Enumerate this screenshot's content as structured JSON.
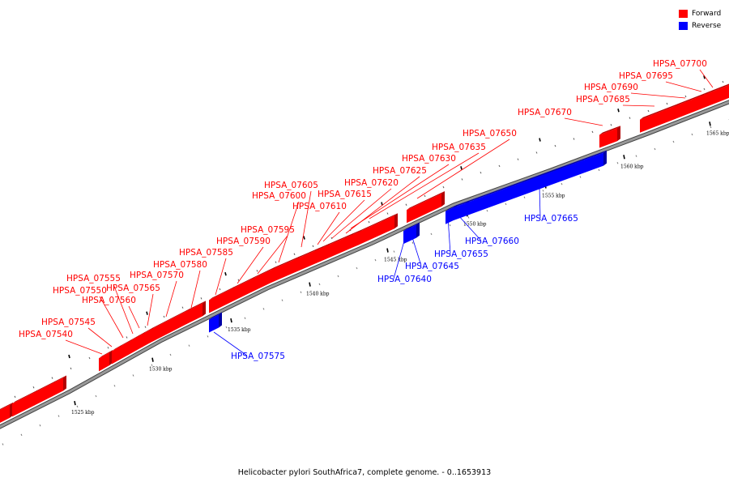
{
  "caption": "Helicobacter pylori SouthAfrica7, complete genome. - 0..1653913",
  "legend": [
    {
      "label": "Forward",
      "color": "#ff0000"
    },
    {
      "label": "Reverse",
      "color": "#0000ff"
    }
  ],
  "colors": {
    "forward": "#ff0000",
    "forward_dark": "#b30000",
    "reverse": "#0000ff",
    "reverse_dark": "#0000a6",
    "backbone": "#999999"
  },
  "ticks": [
    "1525 kbp",
    "1530 kbp",
    "1535 kbp",
    "1540 kbp",
    "1545 kbp",
    "1550 kbp",
    "1555 kbp",
    "1560 kbp",
    "1565 kbp"
  ],
  "genes": [
    {
      "name": "HPSA_07540",
      "strand": "forward"
    },
    {
      "name": "HPSA_07545",
      "strand": "forward"
    },
    {
      "name": "HPSA_07550",
      "strand": "forward"
    },
    {
      "name": "HPSA_07555",
      "strand": "forward"
    },
    {
      "name": "HPSA_07560",
      "strand": "forward"
    },
    {
      "name": "HPSA_07565",
      "strand": "forward"
    },
    {
      "name": "HPSA_07570",
      "strand": "forward"
    },
    {
      "name": "HPSA_07575",
      "strand": "reverse"
    },
    {
      "name": "HPSA_07580",
      "strand": "forward"
    },
    {
      "name": "HPSA_07585",
      "strand": "forward"
    },
    {
      "name": "HPSA_07590",
      "strand": "forward"
    },
    {
      "name": "HPSA_07595",
      "strand": "forward"
    },
    {
      "name": "HPSA_07600",
      "strand": "forward"
    },
    {
      "name": "HPSA_07605",
      "strand": "forward"
    },
    {
      "name": "HPSA_07610",
      "strand": "forward"
    },
    {
      "name": "HPSA_07615",
      "strand": "forward"
    },
    {
      "name": "HPSA_07620",
      "strand": "forward"
    },
    {
      "name": "HPSA_07625",
      "strand": "forward"
    },
    {
      "name": "HPSA_07630",
      "strand": "forward"
    },
    {
      "name": "HPSA_07635",
      "strand": "forward"
    },
    {
      "name": "HPSA_07640",
      "strand": "reverse"
    },
    {
      "name": "HPSA_07645",
      "strand": "reverse"
    },
    {
      "name": "HPSA_07650",
      "strand": "forward"
    },
    {
      "name": "HPSA_07655",
      "strand": "reverse"
    },
    {
      "name": "HPSA_07660",
      "strand": "reverse"
    },
    {
      "name": "HPSA_07665",
      "strand": "reverse"
    },
    {
      "name": "HPSA_07670",
      "strand": "forward"
    },
    {
      "name": "HPSA_07685",
      "strand": "forward"
    },
    {
      "name": "HPSA_07690",
      "strand": "forward"
    },
    {
      "name": "HPSA_07695",
      "strand": "forward"
    },
    {
      "name": "HPSA_07700",
      "strand": "forward"
    }
  ]
}
